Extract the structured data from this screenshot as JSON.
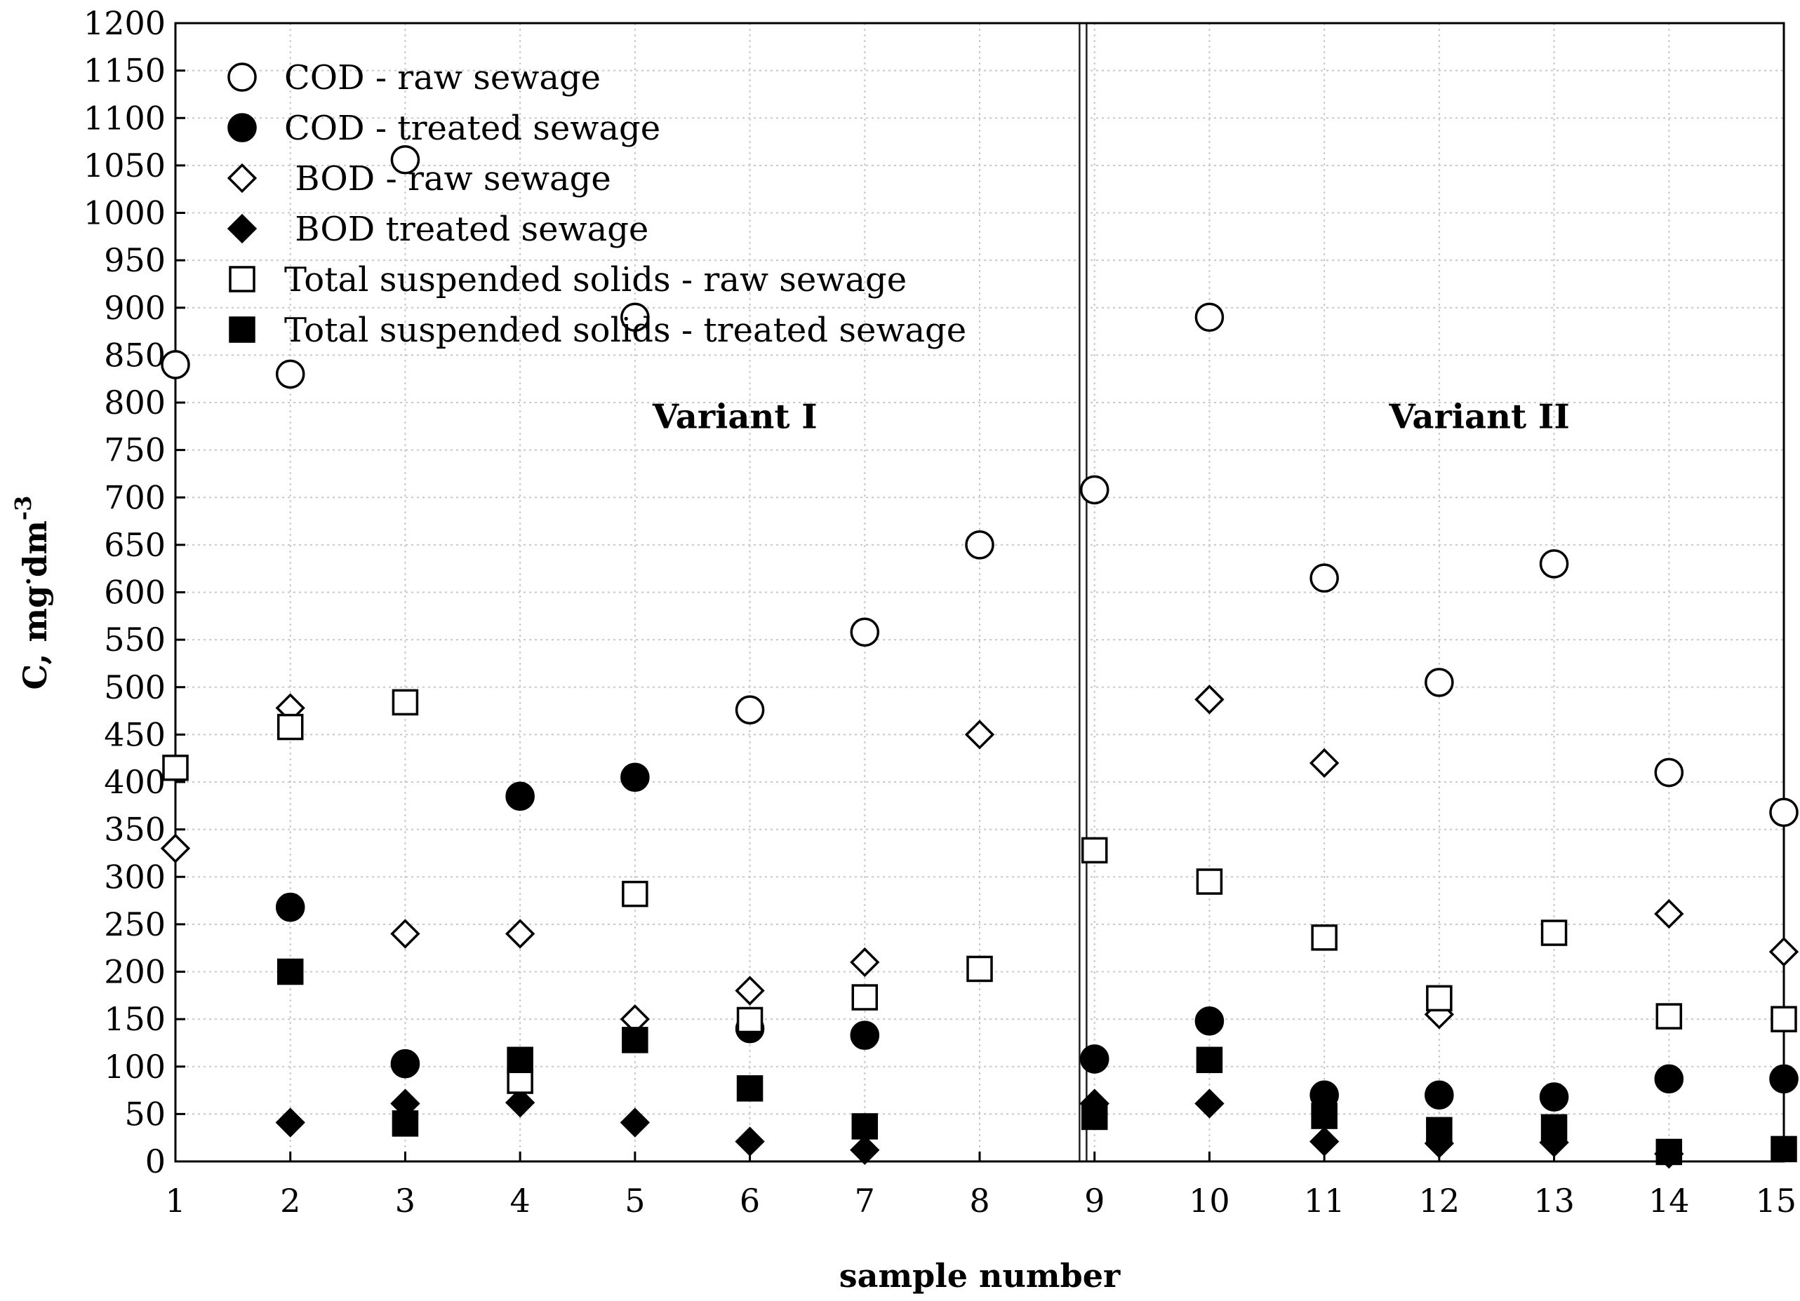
{
  "chart_data": {
    "type": "scatter",
    "title": "",
    "xlabel": "sample number",
    "ylabel": "C, mg·dm-3",
    "ylabel_parts": {
      "main": "C, mg",
      "dot": "·",
      "unit": "dm",
      "exp": "-3"
    },
    "xlim": [
      1,
      15
    ],
    "ylim": [
      0,
      1200
    ],
    "xticks": [
      1,
      2,
      3,
      4,
      5,
      6,
      7,
      8,
      9,
      10,
      11,
      12,
      13,
      14,
      15
    ],
    "yticks": [
      0,
      50,
      100,
      150,
      200,
      250,
      300,
      350,
      400,
      450,
      500,
      550,
      600,
      650,
      700,
      750,
      800,
      850,
      900,
      950,
      1000,
      1050,
      1100,
      1150,
      1200
    ],
    "grid": true,
    "legend_position": "top-left",
    "separator_x": 8.9,
    "annotations": [
      {
        "text": "Variant I",
        "x": 5.87,
        "y": 785
      },
      {
        "text": "Variant II",
        "x": 12.35,
        "y": 785
      }
    ],
    "series": [
      {
        "name": "COD - raw sewage",
        "marker": "circle",
        "filled": false,
        "x": [
          1,
          2,
          3,
          5,
          6,
          7,
          8,
          9,
          10,
          11,
          12,
          13,
          14,
          15
        ],
        "y": [
          840,
          830,
          1056,
          890,
          476,
          558,
          650,
          708,
          890,
          615,
          505,
          630,
          410,
          368
        ]
      },
      {
        "name": "COD - treated sewage",
        "marker": "circle",
        "filled": true,
        "x": [
          2,
          3,
          4,
          5,
          6,
          7,
          9,
          10,
          11,
          12,
          13,
          14,
          15
        ],
        "y": [
          268,
          103,
          385,
          405,
          140,
          133,
          108,
          148,
          70,
          70,
          68,
          87,
          87
        ]
      },
      {
        "name": " BOD - raw sewage",
        "marker": "diamond",
        "filled": false,
        "x": [
          1,
          2,
          3,
          4,
          5,
          6,
          7,
          8,
          10,
          11,
          12,
          14,
          15
        ],
        "y": [
          330,
          478,
          240,
          240,
          150,
          180,
          210,
          450,
          487,
          420,
          155,
          261,
          221
        ]
      },
      {
        "name": " BOD treated sewage",
        "marker": "diamond",
        "filled": true,
        "x": [
          2,
          3,
          4,
          5,
          6,
          7,
          9,
          10,
          11,
          12,
          13,
          14
        ],
        "y": [
          41,
          61,
          62,
          41,
          21,
          12,
          61,
          61,
          21,
          19,
          20,
          8
        ]
      },
      {
        "name": "Total suspended solids - raw sewage",
        "marker": "square",
        "filled": false,
        "x": [
          1,
          2,
          3,
          4,
          5,
          6,
          7,
          8,
          9,
          10,
          11,
          12,
          13,
          14,
          15
        ],
        "y": [
          415,
          458,
          484,
          85,
          282,
          149,
          173,
          203,
          328,
          295,
          236,
          172,
          241,
          153,
          150
        ]
      },
      {
        "name": "Total suspended solids - treated sewage",
        "marker": "square",
        "filled": true,
        "x": [
          2,
          3,
          4,
          5,
          6,
          7,
          9,
          10,
          11,
          12,
          13,
          14,
          15
        ],
        "y": [
          200,
          40,
          107,
          128,
          77,
          37,
          47,
          107,
          48,
          33,
          36,
          10,
          13
        ]
      }
    ]
  }
}
